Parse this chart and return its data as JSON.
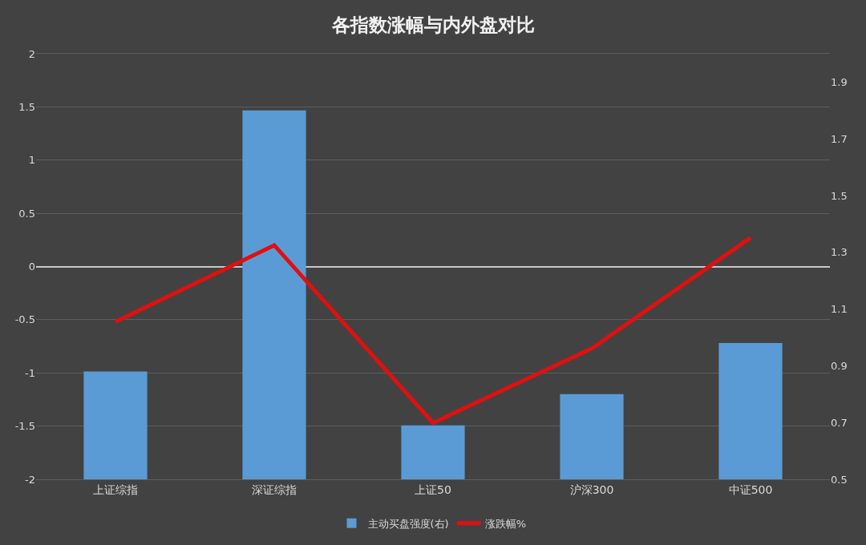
{
  "chart_data": {
    "type": "bar",
    "title": "各指数涨幅与内外盘对比",
    "categories": [
      "上证综指",
      "深证综指",
      "上证50",
      "沪深300",
      "中证500"
    ],
    "series": [
      {
        "name": "主动买盘强度(右)",
        "axis": "y2",
        "color": "#5b9bd5",
        "values": [
          0.88,
          1.8,
          0.69,
          0.8,
          0.98
        ]
      },
      {
        "name": "涨跌幅%",
        "type": "line",
        "color": "#e01010",
        "values": [
          -0.52,
          0.2,
          -1.47,
          -0.77,
          0.27
        ]
      }
    ],
    "ylim": [
      -2,
      2
    ],
    "yticks": [
      -2,
      -1.5,
      -1,
      -0.5,
      0,
      0.5,
      1,
      1.5,
      2
    ],
    "y2lim": [
      0.5,
      2.0
    ],
    "y2ticks": [
      0.5,
      0.7,
      0.9,
      1.1,
      1.3,
      1.5,
      1.7,
      1.9
    ],
    "grid": "y",
    "legend": "bottom",
    "line_style": "solid"
  }
}
